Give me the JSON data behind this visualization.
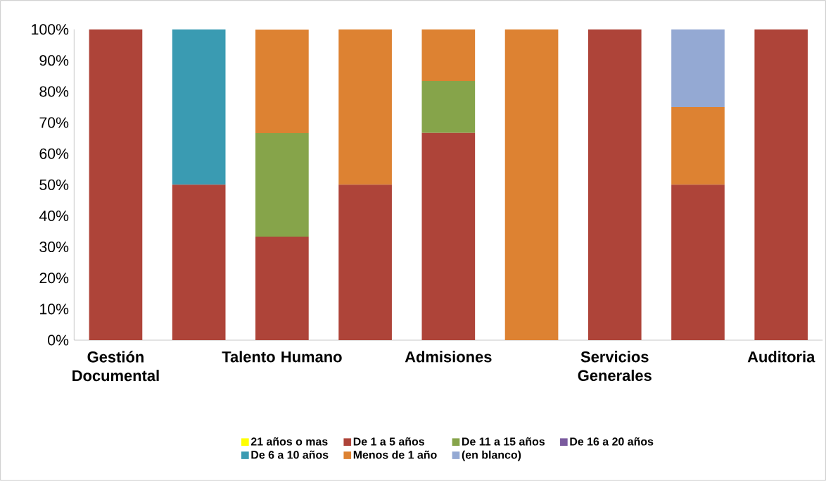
{
  "chart_data": {
    "type": "bar",
    "stacked": true,
    "categories": [
      "Gestión Documental",
      null,
      "Talento Humano",
      null,
      "Admisiones",
      null,
      "Servicios Generales",
      null,
      "Auditoria"
    ],
    "series": [
      {
        "name": "21 años o mas",
        "color": "#ffff00",
        "values": [
          null,
          null,
          null,
          null,
          null,
          null,
          null,
          null,
          null
        ]
      },
      {
        "name": "De 1 a 5 años",
        "color": "#ae4439",
        "values": [
          100,
          50,
          33.3,
          50,
          66.7,
          null,
          100,
          50,
          100
        ]
      },
      {
        "name": "De 11 a 15 años",
        "color": "#86a44a",
        "values": [
          null,
          null,
          33.3,
          null,
          16.7,
          null,
          null,
          null,
          null
        ]
      },
      {
        "name": "De 16 a 20 años",
        "color": "#7a5a9e",
        "values": [
          null,
          null,
          null,
          null,
          null,
          null,
          null,
          null,
          null
        ]
      },
      {
        "name": "De 6 a 10 años",
        "color": "#3a9bb2",
        "values": [
          null,
          50,
          null,
          null,
          null,
          null,
          null,
          null,
          null
        ]
      },
      {
        "name": "Menos de 1 año",
        "color": "#dd8232",
        "values": [
          null,
          null,
          33.3,
          50,
          16.6,
          100,
          null,
          25,
          null
        ]
      },
      {
        "name": "(en blanco)",
        "color": "#94a9d3",
        "values": [
          null,
          null,
          null,
          null,
          null,
          null,
          null,
          25,
          null
        ]
      }
    ],
    "ylim": [
      0,
      100
    ],
    "yticks": [
      {
        "value": 0,
        "label": "0%"
      },
      {
        "value": 10,
        "label": "10%"
      },
      {
        "value": 20,
        "label": "20%"
      },
      {
        "value": 30,
        "label": "30%"
      },
      {
        "value": 40,
        "label": "40%"
      },
      {
        "value": 50,
        "label": "50%"
      },
      {
        "value": 60,
        "label": "60%"
      },
      {
        "value": 70,
        "label": "70%"
      },
      {
        "value": 80,
        "label": "80%"
      },
      {
        "value": 90,
        "label": "90%"
      },
      {
        "value": 100,
        "label": "100%"
      }
    ],
    "grid": false,
    "legend": "bottom"
  }
}
